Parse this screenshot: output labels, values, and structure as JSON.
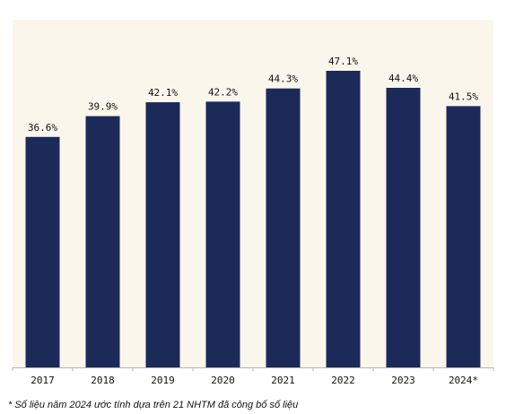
{
  "chart_data": {
    "type": "bar",
    "categories": [
      "2017",
      "2018",
      "2019",
      "2020",
      "2021",
      "2022",
      "2023",
      "2024*"
    ],
    "values": [
      36.6,
      39.9,
      42.1,
      42.2,
      44.3,
      47.1,
      44.4,
      41.5
    ],
    "value_labels": [
      "36.6%",
      "39.9%",
      "42.1%",
      "42.2%",
      "44.3%",
      "47.1%",
      "44.4%",
      "41.5%"
    ],
    "ylim": [
      0,
      47.1
    ],
    "grid": false,
    "legend": "none",
    "colors": {
      "bar": "#1c2a59",
      "plot_background": "#fbf6ec",
      "axis": "#b5b5b5"
    }
  },
  "footnote": "* Số liệu năm 2024 ước tính dựa trên 21 NHTM đã công bố số liệu"
}
